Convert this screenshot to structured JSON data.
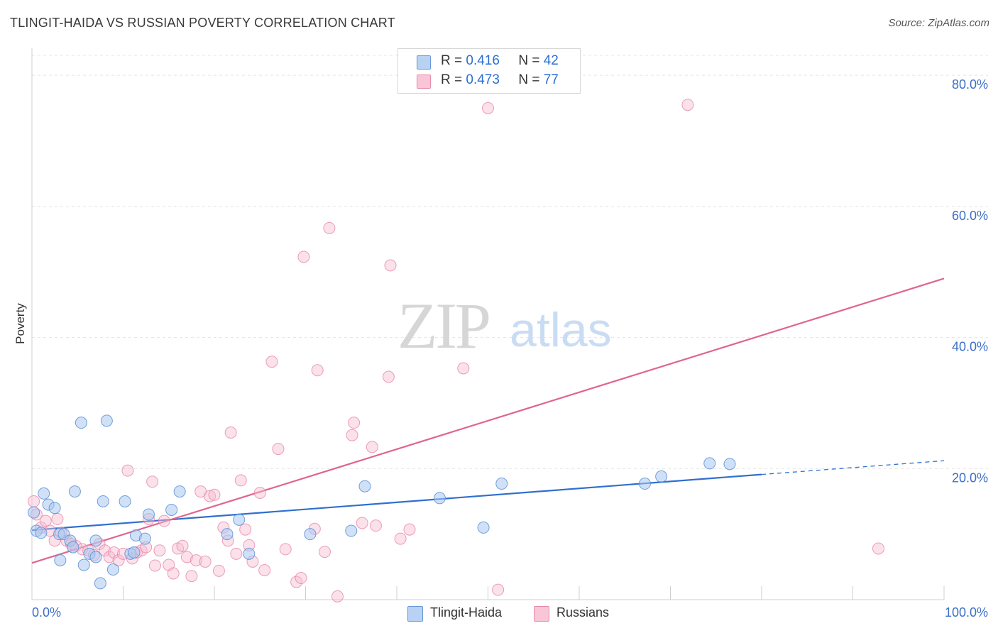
{
  "title": "TLINGIT-HAIDA VS RUSSIAN POVERTY CORRELATION CHART",
  "source": "Source: ZipAtlas.com",
  "legend": {
    "rows": [
      {
        "r_label": "R =",
        "r_value": "0.416",
        "n_label": "N =",
        "n_value": "42"
      },
      {
        "r_label": "R =",
        "r_value": "0.473",
        "n_label": "N =",
        "n_value": "77"
      }
    ]
  },
  "bottom_legend": [
    "Tlingit-Haida",
    "Russians"
  ],
  "watermark": {
    "zip": "ZIP",
    "atlas": "atlas"
  },
  "colors": {
    "blue_fill": "#a9c8f0",
    "blue_stroke": "#5b8fd6",
    "blue_line": "#2f6fd0",
    "pink_fill": "#f6bcd0",
    "pink_stroke": "#e77fa4",
    "pink_line": "#e0648f",
    "tick_label": "#3d6fc8",
    "grid": "#e4e4e4"
  },
  "chart_data": {
    "type": "scatter",
    "title": "TLINGIT-HAIDA VS RUSSIAN POVERTY CORRELATION CHART",
    "xlabel": "",
    "ylabel": "Poverty",
    "xlim": [
      0,
      100
    ],
    "ylim": [
      0,
      85
    ],
    "x_tick_labels": [
      "0.0%",
      "100.0%"
    ],
    "y_ticks": [
      20,
      40,
      60,
      80
    ],
    "y_tick_labels": [
      "20.0%",
      "40.0%",
      "60.0%",
      "80.0%"
    ],
    "grid": true,
    "series": [
      {
        "name": "Tlingit-Haida",
        "color": "#a9c8f0",
        "points": [
          [
            0.5,
            10.5
          ],
          [
            1,
            10.2
          ],
          [
            1.3,
            16.2
          ],
          [
            1.8,
            14.5
          ],
          [
            2.5,
            14.0
          ],
          [
            3,
            10.0
          ],
          [
            3.1,
            6.0
          ],
          [
            3.5,
            10.0
          ],
          [
            4.2,
            9.0
          ],
          [
            4.5,
            8.0
          ],
          [
            4.7,
            16.5
          ],
          [
            5.4,
            27.0
          ],
          [
            5.7,
            5.3
          ],
          [
            6.3,
            7.0
          ],
          [
            7,
            6.5
          ],
          [
            7.0,
            9.0
          ],
          [
            7.5,
            2.5
          ],
          [
            7.8,
            15.0
          ],
          [
            8.2,
            27.3
          ],
          [
            8.9,
            4.6
          ],
          [
            10.2,
            15.0
          ],
          [
            10.8,
            7.0
          ],
          [
            11.2,
            7.2
          ],
          [
            11.4,
            9.8
          ],
          [
            12.4,
            9.3
          ],
          [
            12.8,
            13.0
          ],
          [
            15.3,
            13.7
          ],
          [
            16.2,
            16.5
          ],
          [
            21.4,
            10.0
          ],
          [
            22.7,
            12.2
          ],
          [
            23.8,
            7.0
          ],
          [
            30.5,
            10.0
          ],
          [
            35,
            10.5
          ],
          [
            36.5,
            17.3
          ],
          [
            44.7,
            15.5
          ],
          [
            49.5,
            11.0
          ],
          [
            51.5,
            17.7
          ],
          [
            67.2,
            17.7
          ],
          [
            69,
            18.8
          ],
          [
            74.3,
            20.8
          ],
          [
            76.5,
            20.7
          ],
          [
            0.2,
            13.3
          ]
        ]
      },
      {
        "name": "Russians",
        "color": "#f6bcd0",
        "points": [
          [
            0.2,
            15.0
          ],
          [
            0.5,
            13.0
          ],
          [
            1,
            11.0
          ],
          [
            1.5,
            12.0
          ],
          [
            2,
            10.5
          ],
          [
            2.5,
            9.0
          ],
          [
            2.8,
            12.3
          ],
          [
            3.2,
            10.2
          ],
          [
            3.8,
            9.0
          ],
          [
            4.3,
            8.5
          ],
          [
            4.8,
            8.2
          ],
          [
            5.5,
            7.7
          ],
          [
            6.2,
            7.5
          ],
          [
            6.8,
            6.8
          ],
          [
            7.4,
            8.5
          ],
          [
            8,
            7.5
          ],
          [
            8.5,
            6.5
          ],
          [
            9,
            7.2
          ],
          [
            9.5,
            6.0
          ],
          [
            10,
            7.0
          ],
          [
            10.5,
            19.7
          ],
          [
            11,
            6.3
          ],
          [
            11.5,
            7.2
          ],
          [
            12,
            7.5
          ],
          [
            12.5,
            8.0
          ],
          [
            12.8,
            12.3
          ],
          [
            13.2,
            18.0
          ],
          [
            13.5,
            5.2
          ],
          [
            14,
            7.5
          ],
          [
            14.5,
            12.0
          ],
          [
            15,
            5.3
          ],
          [
            15.5,
            4.0
          ],
          [
            16,
            7.8
          ],
          [
            16.5,
            8.2
          ],
          [
            17,
            6.5
          ],
          [
            17.5,
            3.6
          ],
          [
            18,
            6.0
          ],
          [
            18.5,
            16.5
          ],
          [
            19,
            5.8
          ],
          [
            19.5,
            15.8
          ],
          [
            20,
            16.0
          ],
          [
            20.5,
            4.4
          ],
          [
            21,
            11.0
          ],
          [
            21.5,
            9.0
          ],
          [
            21.8,
            25.5
          ],
          [
            22.4,
            7.0
          ],
          [
            22.9,
            18.2
          ],
          [
            23.4,
            10.7
          ],
          [
            23.8,
            8.3
          ],
          [
            24.2,
            5.8
          ],
          [
            25,
            16.3
          ],
          [
            25.5,
            4.5
          ],
          [
            26.3,
            36.3
          ],
          [
            27,
            23.0
          ],
          [
            27.8,
            7.7
          ],
          [
            29,
            2.7
          ],
          [
            29.5,
            3.3
          ],
          [
            29.8,
            52.3
          ],
          [
            31,
            10.8
          ],
          [
            31.3,
            35.0
          ],
          [
            32.1,
            7.3
          ],
          [
            32.6,
            56.7
          ],
          [
            33.5,
            0.5
          ],
          [
            35.1,
            25.1
          ],
          [
            35.3,
            27.0
          ],
          [
            36.2,
            11.7
          ],
          [
            37.3,
            23.3
          ],
          [
            37.7,
            11.3
          ],
          [
            39.1,
            34.0
          ],
          [
            39.3,
            51.0
          ],
          [
            40.4,
            9.3
          ],
          [
            41.4,
            10.7
          ],
          [
            47.3,
            35.3
          ],
          [
            50,
            75.0
          ],
          [
            51.1,
            1.5
          ],
          [
            71.9,
            75.5
          ],
          [
            92.8,
            7.8
          ]
        ]
      }
    ],
    "trendlines": [
      {
        "series": "Tlingit-Haida",
        "x": [
          0,
          80
        ],
        "y": [
          10.6,
          19.1
        ],
        "dashed_extension": {
          "x": [
            80,
            100
          ],
          "y": [
            19.1,
            21.2
          ]
        }
      },
      {
        "series": "Russians",
        "x": [
          0,
          100
        ],
        "y": [
          5.6,
          49.0
        ]
      }
    ]
  }
}
